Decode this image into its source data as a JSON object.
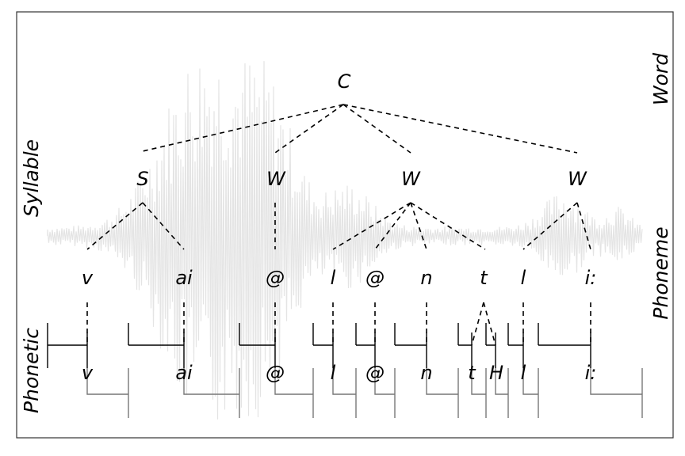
{
  "tiers": {
    "word": "Word",
    "syllable": "Syllable",
    "phoneme": "Phoneme",
    "phonetic": "Phonetic"
  },
  "word": {
    "label": "C"
  },
  "syllables": [
    {
      "label": "S"
    },
    {
      "label": "W"
    },
    {
      "label": "W"
    },
    {
      "label": "W"
    }
  ],
  "phonemes": [
    {
      "label": "v"
    },
    {
      "label": "ai"
    },
    {
      "label": "@"
    },
    {
      "label": "l"
    },
    {
      "label": "@"
    },
    {
      "label": "n"
    },
    {
      "label": "t"
    },
    {
      "label": "l"
    },
    {
      "label": "i:"
    }
  ],
  "phonetic": [
    {
      "label": "v"
    },
    {
      "label": "ai"
    },
    {
      "label": "@"
    },
    {
      "label": "l"
    },
    {
      "label": "@"
    },
    {
      "label": "n"
    },
    {
      "label": "t"
    },
    {
      "label": "H"
    },
    {
      "label": "l"
    },
    {
      "label": "i:"
    }
  ],
  "colors": {
    "frame": "#333333",
    "waveform": "#e4e4e4",
    "tree": "#000000",
    "segment": "#777777"
  }
}
